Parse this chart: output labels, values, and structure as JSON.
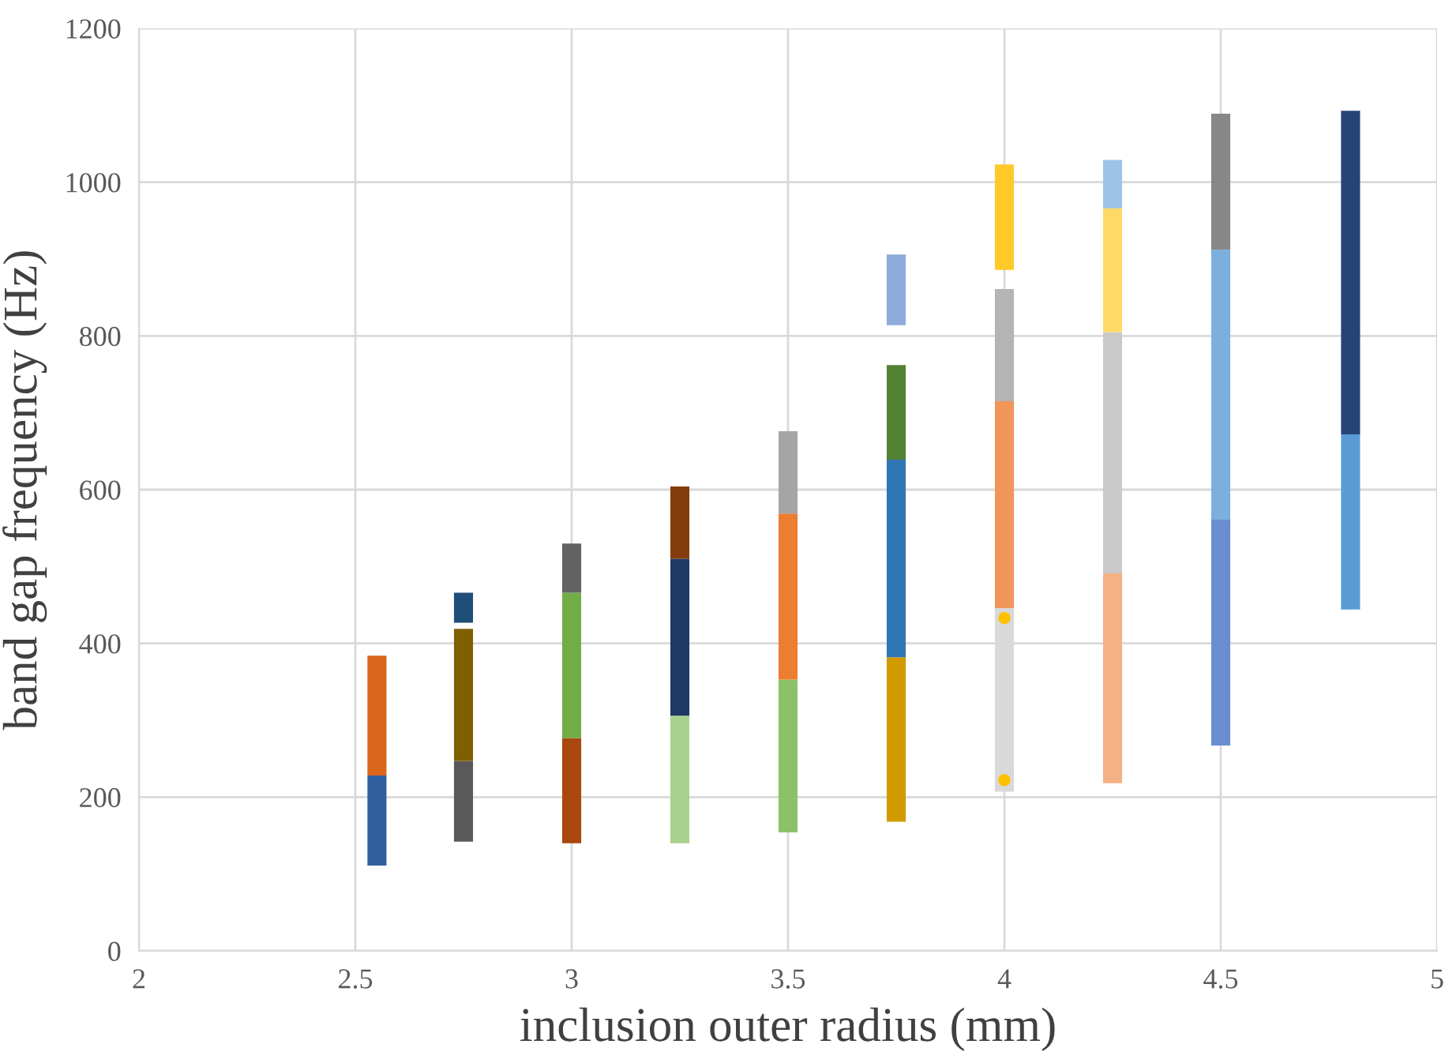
{
  "chart_data": {
    "type": "bar",
    "xlabel": "inclusion outer radius (mm)",
    "ylabel": "band gap frequency (Hz)",
    "xlim": [
      2,
      5
    ],
    "xticks": [
      2,
      2.5,
      3,
      3.5,
      4,
      4.5,
      5
    ],
    "ylim": [
      0,
      1200
    ],
    "yticks": [
      0,
      200,
      400,
      600,
      800,
      1000,
      1200
    ],
    "grid": true,
    "series": [
      {
        "x": [
          2.55,
          2.75,
          3,
          3.25,
          3.5,
          3.75,
          4,
          4.25,
          4.5,
          4.8
        ],
        "base": [
          111,
          142,
          140,
          140,
          154,
          168,
          207,
          218,
          267,
          444
        ],
        "values": [
          117,
          105,
          137,
          166,
          199,
          214,
          239,
          273,
          294,
          228
        ],
        "colors": [
          "#2f5f9f",
          "#595959",
          "#a9480e",
          "#a9d18e",
          "#8cc168",
          "#d09a00",
          "#d9d9d9",
          "#f4b183",
          "#698ed0",
          "#5b9bd5"
        ]
      },
      {
        "x": [
          2.55,
          2.75,
          3,
          3.25,
          3.5,
          3.75,
          4,
          4.25,
          4.5,
          4.8
        ],
        "base": [
          228,
          247,
          277,
          306,
          353,
          382,
          446,
          491,
          561,
          672
        ],
        "values": [
          156,
          172,
          189,
          204,
          216,
          257,
          269,
          314,
          351,
          421
        ],
        "colors": [
          "#d9661a",
          "#7f6000",
          "#70ad47",
          "#203864",
          "#ed7d31",
          "#2e75b6",
          "#f0965a",
          "#c9c9c9",
          "#7bafde",
          "#264478"
        ]
      },
      {
        "x": [
          2.75,
          3,
          3.25,
          3.5,
          3.75,
          4,
          4.25,
          4.5
        ],
        "base": [
          427,
          466,
          510,
          569,
          639,
          715,
          805,
          912
        ],
        "values": [
          39,
          64,
          94,
          107,
          123,
          146,
          161,
          177
        ],
        "colors": [
          "#1f4e79",
          "#636363",
          "#843c0c",
          "#a5a5a5",
          "#548235",
          "#b4b4b4",
          "#ffd966",
          "#878787"
        ]
      },
      {
        "x": [
          3.75,
          4,
          4.25
        ],
        "base": [
          814,
          886,
          966
        ],
        "values": [
          92,
          137,
          63
        ],
        "colors": [
          "#8faadc",
          "#ffc92a",
          "#9dc3e6"
        ]
      },
      {
        "type": "scatter",
        "x": [
          4,
          4
        ],
        "values": [
          433,
          222
        ],
        "color": "#ffc000",
        "marker": "circle"
      }
    ]
  }
}
